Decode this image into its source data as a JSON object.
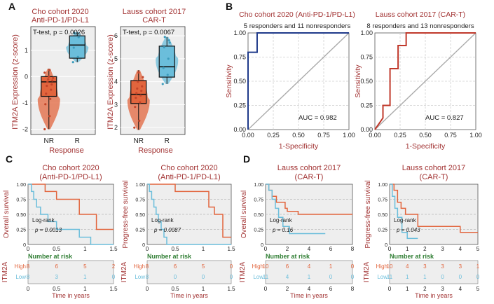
{
  "colors": {
    "red": "#a23333",
    "orange": "#e2653d",
    "blue": "#6bbedb",
    "navy": "#1f3a8a",
    "green": "#2e7d32",
    "grid": "#cfcfcf",
    "panel_bg": "#eeeeee"
  },
  "panel_a": {
    "letter": "A",
    "ylabel": "ITM2A Expression (z-score)",
    "xlabel": "Response",
    "sub1": {
      "title_line1": "Cho cohort 2020",
      "title_line2": "Anti-PD-1/PD-L1",
      "stat": "T-test, p = 0.0026"
    },
    "sub2": {
      "title_line1": "Lauss cohort 2017",
      "title_line2": "CAR-T",
      "stat": "T-test, p = 0.0067"
    }
  },
  "panel_b": {
    "letter": "B",
    "xlabel": "1-Specificity",
    "ylabel": "Sensitivity",
    "roc1": {
      "title": "Cho cohort 2020 (Anti-PD-1/PD-L1)",
      "subtitle": "5 responders and 11 nonresponders",
      "auc": "AUC = 0.982"
    },
    "roc2": {
      "title": "Lauss cohort 2017 (CAR-T)",
      "subtitle": "8 responders and 13 nonresponders",
      "auc": "AUC = 0.827"
    }
  },
  "panel_c": {
    "letter": "C",
    "km1": {
      "title_line1": "Cho cohort 2020",
      "title_line2": "(Anti-PD-1/PD-L1)",
      "ylabel": "Overall survival",
      "logrank": "Log-rank",
      "pval": "p = 0.0013"
    },
    "km2": {
      "title_line1": "Cho cohort 2020",
      "title_line2": "(Anti-PD-1/PD-L1)",
      "ylabel": "Progress-free survival",
      "logrank": "Log-rank",
      "pval": "p = 0.0087"
    }
  },
  "panel_d": {
    "letter": "D",
    "km3": {
      "title_line1": "Lauss cohort 2017",
      "title_line2": "(CAR-T)",
      "ylabel": "Overall survival",
      "logrank": "Log-rank",
      "pval": "p = 0.16"
    },
    "km4": {
      "title_line1": "Lauss cohort 2017",
      "title_line2": "(CAR-T)",
      "ylabel": "Progress-free survival",
      "logrank": "Log-rank",
      "pval": "p = 0.043"
    }
  },
  "risk": {
    "title": "Number at risk",
    "gene": "ITM2A",
    "high": "High",
    "low": "Low",
    "xlabel": "Time  in  years"
  },
  "chart_data": [
    {
      "id": "a1",
      "type": "box",
      "categories": [
        "NR",
        "R"
      ],
      "ylim": [
        -2.2,
        1.9
      ],
      "yticks": [
        -2,
        -1,
        0,
        1
      ],
      "boxes": [
        {
          "min": -2.0,
          "q1": -0.75,
          "median": -0.2,
          "q3": 0.0,
          "max": 0.3
        },
        {
          "min": 0.55,
          "q1": 0.7,
          "median": 1.2,
          "q3": 1.55,
          "max": 1.7
        }
      ],
      "points": [
        [
          [
            -2.0,
            -1.5,
            -1.05,
            -0.85,
            -0.65,
            -0.5,
            -0.35,
            -0.3,
            -0.2,
            -0.15,
            -0.1,
            -0.05,
            0.0,
            0.15,
            0.25
          ]
        ],
        [
          [
            0.55,
            0.75,
            1.1,
            1.5,
            1.65
          ]
        ]
      ]
    },
    {
      "id": "a2",
      "type": "box",
      "categories": [
        "NR",
        "R"
      ],
      "ylim": [
        1.7,
        6.4
      ],
      "yticks": [
        2,
        3,
        4,
        5,
        6
      ],
      "boxes": [
        {
          "min": 1.9,
          "q1": 3.05,
          "median": 3.45,
          "q3": 4.05,
          "max": 4.5
        },
        {
          "min": 3.9,
          "q1": 4.2,
          "median": 4.65,
          "q3": 5.55,
          "max": 5.95
        }
      ],
      "points": [
        [
          [
            2.0,
            2.3,
            2.9,
            3.1,
            3.3,
            3.4,
            3.5,
            3.6,
            3.7,
            3.8,
            4.0,
            4.2,
            4.4
          ]
        ],
        [
          [
            3.9,
            4.3,
            4.6,
            5.0,
            5.5,
            5.8,
            5.95,
            5.7
          ]
        ]
      ]
    },
    {
      "id": "b1",
      "type": "line",
      "title": "ROC",
      "xlim": [
        0,
        1
      ],
      "ylim": [
        0,
        1
      ],
      "xticks": [
        "0.00",
        "0.25",
        "0.50",
        "0.75",
        "1.00"
      ],
      "yticks": [
        "0.00",
        "0.25",
        "0.50",
        "0.75",
        "1.00"
      ],
      "series": [
        {
          "name": "ROC",
          "x": [
            0,
            0,
            0.09,
            0.09,
            1
          ],
          "y": [
            0,
            0.8,
            0.8,
            1,
            1
          ]
        }
      ]
    },
    {
      "id": "b2",
      "type": "line",
      "title": "ROC",
      "xlim": [
        0,
        1
      ],
      "ylim": [
        0,
        1
      ],
      "xticks": [
        "0.00",
        "0.25",
        "0.50",
        "0.75",
        "1.00"
      ],
      "yticks": [
        "0.00",
        "0.25",
        "0.50",
        "0.75",
        "1.00"
      ],
      "series": [
        {
          "name": "ROC",
          "x": [
            0,
            0.08,
            0.08,
            0.15,
            0.15,
            0.23,
            0.23,
            0.31,
            0.31,
            1
          ],
          "y": [
            0,
            0.12,
            0.25,
            0.25,
            0.63,
            0.63,
            0.87,
            0.87,
            1,
            1
          ]
        }
      ]
    },
    {
      "id": "c1",
      "type": "line",
      "xlim": [
        0,
        1.5
      ],
      "ylim": [
        0,
        1
      ],
      "xticks": [
        "0",
        "0.5",
        "1",
        "1.5"
      ],
      "yticks": [
        "0",
        "0.25",
        "0.50",
        "0.75",
        "1.00"
      ],
      "series": [
        {
          "name": "High",
          "x": [
            0,
            0.3,
            0.3,
            0.5,
            0.5,
            0.9,
            0.9,
            1.2,
            1.2,
            1.5
          ],
          "y": [
            1,
            1,
            0.88,
            0.88,
            0.75,
            0.75,
            0.5,
            0.5,
            0.25,
            0.25
          ]
        },
        {
          "name": "Low",
          "x": [
            0,
            0.06,
            0.06,
            0.1,
            0.1,
            0.15,
            0.15,
            0.22,
            0.22,
            0.35,
            0.35,
            0.5,
            0.5,
            0.9,
            0.9,
            1.1,
            1.1,
            1.5
          ],
          "y": [
            1,
            1,
            0.88,
            0.88,
            0.75,
            0.75,
            0.62,
            0.62,
            0.5,
            0.5,
            0.38,
            0.38,
            0.25,
            0.25,
            0.12,
            0.12,
            0,
            0
          ]
        }
      ],
      "risk": {
        "ticks": [
          0,
          0.5,
          1,
          1.5
        ],
        "high": [
          "8",
          "6",
          "5",
          "2"
        ],
        "low": [
          "8",
          "3",
          "1",
          "0"
        ]
      }
    },
    {
      "id": "c2",
      "type": "line",
      "xlim": [
        0,
        1.5
      ],
      "ylim": [
        0,
        1
      ],
      "xticks": [
        "0",
        "0.5",
        "1",
        "1.5"
      ],
      "yticks": [
        "0",
        "0.25",
        "0.50",
        "0.75",
        "1.00"
      ],
      "series": [
        {
          "name": "High",
          "x": [
            0,
            0.5,
            0.5,
            1.1,
            1.1,
            1.2,
            1.2,
            1.35,
            1.35,
            1.5
          ],
          "y": [
            1,
            1,
            0.88,
            0.88,
            0.62,
            0.62,
            0.5,
            0.5,
            0.12,
            0.12
          ]
        },
        {
          "name": "Low",
          "x": [
            0,
            0.04,
            0.04,
            0.08,
            0.08,
            0.12,
            0.12,
            0.16,
            0.16,
            0.2,
            0.2,
            0.25,
            0.25,
            0.3,
            0.3,
            0.35,
            0.35,
            0.45,
            0.45,
            1.5
          ],
          "y": [
            1,
            1,
            0.88,
            0.88,
            0.75,
            0.75,
            0.62,
            0.62,
            0.5,
            0.5,
            0.38,
            0.38,
            0.25,
            0.25,
            0.12,
            0.12,
            0,
            0,
            0,
            0
          ]
        }
      ],
      "risk": {
        "ticks": [
          0,
          0.5,
          1,
          1.5
        ],
        "high": [
          "8",
          "6",
          "5",
          "0"
        ],
        "low": [
          "8",
          "0",
          "0",
          "0"
        ]
      }
    },
    {
      "id": "d1",
      "type": "line",
      "xlim": [
        0,
        8
      ],
      "ylim": [
        0,
        1
      ],
      "xticks": [
        "0",
        "2",
        "4",
        "6",
        "8"
      ],
      "yticks": [
        "0",
        "0.25",
        "0.50",
        "0.75",
        "1.00"
      ],
      "series": [
        {
          "name": "High",
          "x": [
            0,
            0.3,
            0.3,
            0.6,
            0.6,
            1.0,
            1.0,
            1.8,
            1.8,
            2.0,
            2.0,
            3.0,
            3.0,
            8
          ],
          "y": [
            1,
            1,
            0.9,
            0.9,
            0.8,
            0.8,
            0.7,
            0.7,
            0.6,
            0.6,
            0.55,
            0.55,
            0.5,
            0.5
          ]
        },
        {
          "name": "Low",
          "x": [
            0,
            0.3,
            0.3,
            0.6,
            0.6,
            0.9,
            0.9,
            1.2,
            1.2,
            1.6,
            1.6,
            2.2,
            2.2,
            5.5
          ],
          "y": [
            1,
            1,
            0.9,
            0.9,
            0.75,
            0.75,
            0.6,
            0.6,
            0.45,
            0.45,
            0.3,
            0.3,
            0.18,
            0.18
          ]
        }
      ],
      "risk": {
        "ticks": [
          0,
          2,
          4,
          6,
          8
        ],
        "high": [
          "10",
          "6",
          "4",
          "1",
          "0"
        ],
        "low": [
          "11",
          "4",
          "1",
          "0",
          "0"
        ]
      }
    },
    {
      "id": "d2",
      "type": "line",
      "xlim": [
        0,
        5
      ],
      "ylim": [
        0,
        1
      ],
      "xticks": [
        "0",
        "1",
        "2",
        "3",
        "4",
        "5"
      ],
      "yticks": [
        "0",
        "0.25",
        "0.50",
        "0.75",
        "1.00"
      ],
      "series": [
        {
          "name": "High",
          "x": [
            0,
            0.25,
            0.25,
            0.45,
            0.45,
            0.65,
            0.65,
            0.9,
            0.9,
            1.6,
            1.6,
            4.0,
            4.0,
            5
          ],
          "y": [
            1,
            1,
            0.9,
            0.9,
            0.7,
            0.7,
            0.6,
            0.6,
            0.5,
            0.5,
            0.3,
            0.3,
            0.2,
            0.2
          ]
        },
        {
          "name": "Low",
          "x": [
            0,
            0.15,
            0.15,
            0.3,
            0.3,
            0.45,
            0.45,
            0.7,
            0.7,
            1.0,
            1.0,
            1.6
          ],
          "y": [
            1,
            1,
            0.8,
            0.8,
            0.6,
            0.6,
            0.45,
            0.45,
            0.2,
            0.2,
            0.1,
            0.1
          ]
        }
      ],
      "risk": {
        "ticks": [
          0,
          1,
          2,
          3,
          4,
          5
        ],
        "high": [
          "10",
          "4",
          "3",
          "3",
          "3",
          "1"
        ],
        "low": [
          "11",
          "1",
          "1",
          "0",
          "0",
          "0"
        ]
      }
    }
  ]
}
